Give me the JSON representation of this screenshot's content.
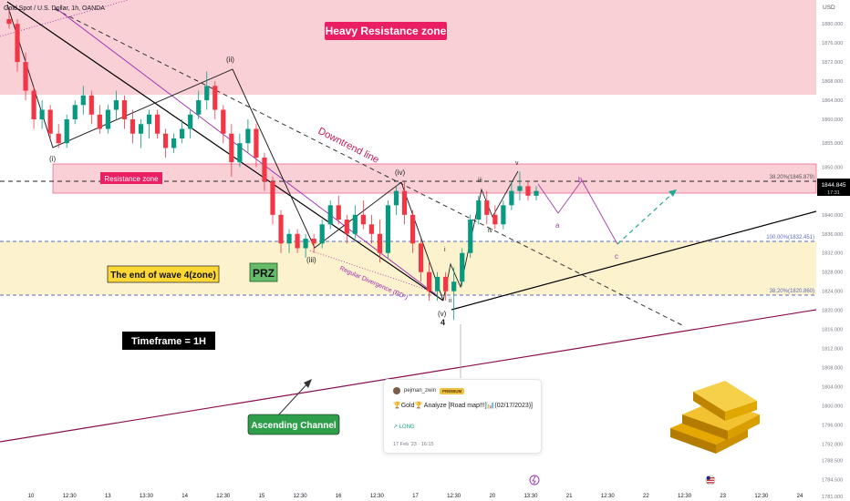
{
  "header": {
    "symbol_text": "Gold Spot / U.S. Dollar, 1h, OANDA",
    "currency": "USD"
  },
  "colors": {
    "up": "#089981",
    "down": "#f23645",
    "resistance_zone_fill": "#f8c8cf",
    "wave4_zone_fill": "#fdf1c9",
    "channel": "#880e4f",
    "divergence": "#9c27b0",
    "forecast_green": "#22ab94",
    "forecast_purple": "#a03da8"
  },
  "annotations": {
    "heavy_resistance": "Heavy Resistance zone",
    "resistance_zone": "Resistance zone",
    "downtrend_line": "Downtrend line",
    "wave4_zone": "The end of wave 4(zone)",
    "prz": "PRZ",
    "timeframe": "Timeframe = 1H",
    "ascending_channel": "Ascending Channel",
    "regular_divergence": "Regular Divergence (RD-)",
    "fib_38_upper": "38.20%(1845.879)",
    "fib_100": "100.00%(1832.451)",
    "fib_38_lower": "38.20%(1820.860)"
  },
  "wave_labels": {
    "w_i": "(i)",
    "w_ii": "(ii)",
    "w_iii": "(iii)",
    "w_iv": "(iv)",
    "w_v": "(v)",
    "w_4": "4",
    "s_i": "i",
    "s_ii": "ii",
    "s_iii": "iii",
    "s_iv": "iv",
    "s_v": "v",
    "s_a": "a",
    "s_b": "b",
    "s_c": "c"
  },
  "price_badge": {
    "price": "1844.845",
    "countdown": "17:31"
  },
  "note_card": {
    "user": "pejman_zwin",
    "badge": "PREMIUM",
    "title": "🏆Gold🏆 Analyze [Road map!!!]📊(02/17/2023)]",
    "direction": "↗ LONG",
    "date": "17 Feb '23 · 16:15"
  },
  "chart_data": {
    "type": "candlestick",
    "y_axis": {
      "min": 1781,
      "max": 1885,
      "ticks": [
        "1880.000",
        "1876.000",
        "1872.000",
        "1868.000",
        "1864.000",
        "1860.000",
        "1855.000",
        "1850.000",
        "1845.000",
        "1840.000",
        "1836.000",
        "1832.000",
        "1828.000",
        "1824.000",
        "1820.000",
        "1816.000",
        "1812.000",
        "1808.000",
        "1804.000",
        "1800.000",
        "1796.000",
        "1792.000",
        "1788.500",
        "1784.500",
        "1781.000"
      ]
    },
    "x_axis": {
      "ticks": [
        "10",
        "12:30",
        "13",
        "13:30",
        "14",
        "12:30",
        "15",
        "12:30",
        "16",
        "12:30",
        "17",
        "12:30",
        "20",
        "13:30",
        "21",
        "12:30",
        "22",
        "12:30",
        "23",
        "12:30",
        "24"
      ]
    },
    "zones": [
      {
        "name": "heavy-resistance",
        "from": 1864.5,
        "to": 1885
      },
      {
        "name": "resistance",
        "from": 1843.5,
        "to": 1849.5
      },
      {
        "name": "wave4",
        "from": 1821,
        "to": 1832.5
      }
    ],
    "candles": [
      {
        "o": 1881,
        "h": 1883,
        "l": 1879,
        "c": 1880
      },
      {
        "o": 1880,
        "h": 1881,
        "l": 1870,
        "c": 1872
      },
      {
        "o": 1872,
        "h": 1874,
        "l": 1864,
        "c": 1866
      },
      {
        "o": 1866,
        "h": 1867,
        "l": 1858,
        "c": 1860
      },
      {
        "o": 1860,
        "h": 1864,
        "l": 1858,
        "c": 1862
      },
      {
        "o": 1862,
        "h": 1863,
        "l": 1856,
        "c": 1857
      },
      {
        "o": 1857,
        "h": 1859,
        "l": 1854,
        "c": 1855
      },
      {
        "o": 1855,
        "h": 1861,
        "l": 1854,
        "c": 1860
      },
      {
        "o": 1860,
        "h": 1864,
        "l": 1859,
        "c": 1863
      },
      {
        "o": 1863,
        "h": 1867,
        "l": 1861,
        "c": 1865
      },
      {
        "o": 1865,
        "h": 1866,
        "l": 1859,
        "c": 1861
      },
      {
        "o": 1861,
        "h": 1863,
        "l": 1857,
        "c": 1858
      },
      {
        "o": 1858,
        "h": 1863,
        "l": 1857,
        "c": 1862
      },
      {
        "o": 1862,
        "h": 1866,
        "l": 1860,
        "c": 1864
      },
      {
        "o": 1864,
        "h": 1865,
        "l": 1858,
        "c": 1860
      },
      {
        "o": 1860,
        "h": 1862,
        "l": 1855,
        "c": 1857
      },
      {
        "o": 1857,
        "h": 1860,
        "l": 1854,
        "c": 1859
      },
      {
        "o": 1859,
        "h": 1862,
        "l": 1856,
        "c": 1861
      },
      {
        "o": 1861,
        "h": 1862,
        "l": 1856,
        "c": 1857
      },
      {
        "o": 1857,
        "h": 1858,
        "l": 1852,
        "c": 1854
      },
      {
        "o": 1854,
        "h": 1857,
        "l": 1853,
        "c": 1856
      },
      {
        "o": 1856,
        "h": 1860,
        "l": 1855,
        "c": 1858
      },
      {
        "o": 1858,
        "h": 1862,
        "l": 1856,
        "c": 1861
      },
      {
        "o": 1861,
        "h": 1866,
        "l": 1860,
        "c": 1864
      },
      {
        "o": 1864,
        "h": 1870,
        "l": 1862,
        "c": 1867
      },
      {
        "o": 1867,
        "h": 1868,
        "l": 1860,
        "c": 1862
      },
      {
        "o": 1862,
        "h": 1863,
        "l": 1855,
        "c": 1857
      },
      {
        "o": 1857,
        "h": 1859,
        "l": 1848,
        "c": 1851
      },
      {
        "o": 1851,
        "h": 1857,
        "l": 1850,
        "c": 1855
      },
      {
        "o": 1855,
        "h": 1860,
        "l": 1853,
        "c": 1858
      },
      {
        "o": 1858,
        "h": 1859,
        "l": 1850,
        "c": 1852
      },
      {
        "o": 1852,
        "h": 1853,
        "l": 1845,
        "c": 1847
      },
      {
        "o": 1847,
        "h": 1848,
        "l": 1838,
        "c": 1840
      },
      {
        "o": 1840,
        "h": 1841,
        "l": 1832,
        "c": 1834
      },
      {
        "o": 1834,
        "h": 1837,
        "l": 1832,
        "c": 1836
      },
      {
        "o": 1836,
        "h": 1837,
        "l": 1832,
        "c": 1833
      },
      {
        "o": 1833,
        "h": 1836,
        "l": 1831,
        "c": 1835
      },
      {
        "o": 1835,
        "h": 1836,
        "l": 1832,
        "c": 1834
      },
      {
        "o": 1834,
        "h": 1839,
        "l": 1833,
        "c": 1838
      },
      {
        "o": 1838,
        "h": 1843,
        "l": 1837,
        "c": 1842
      },
      {
        "o": 1842,
        "h": 1844,
        "l": 1838,
        "c": 1839
      },
      {
        "o": 1839,
        "h": 1840,
        "l": 1834,
        "c": 1836
      },
      {
        "o": 1836,
        "h": 1842,
        "l": 1835,
        "c": 1840
      },
      {
        "o": 1840,
        "h": 1843,
        "l": 1837,
        "c": 1838
      },
      {
        "o": 1838,
        "h": 1840,
        "l": 1834,
        "c": 1836
      },
      {
        "o": 1836,
        "h": 1839,
        "l": 1830,
        "c": 1832
      },
      {
        "o": 1832,
        "h": 1843,
        "l": 1831,
        "c": 1842
      },
      {
        "o": 1842,
        "h": 1846,
        "l": 1840,
        "c": 1845
      },
      {
        "o": 1845,
        "h": 1847,
        "l": 1838,
        "c": 1840
      },
      {
        "o": 1840,
        "h": 1841,
        "l": 1832,
        "c": 1834
      },
      {
        "o": 1834,
        "h": 1835,
        "l": 1826,
        "c": 1828
      },
      {
        "o": 1828,
        "h": 1830,
        "l": 1822,
        "c": 1824
      },
      {
        "o": 1824,
        "h": 1828,
        "l": 1822,
        "c": 1827
      },
      {
        "o": 1827,
        "h": 1828,
        "l": 1822,
        "c": 1824
      },
      {
        "o": 1824,
        "h": 1829,
        "l": 1818,
        "c": 1826
      },
      {
        "o": 1826,
        "h": 1833,
        "l": 1825,
        "c": 1832
      },
      {
        "o": 1832,
        "h": 1840,
        "l": 1831,
        "c": 1839
      },
      {
        "o": 1839,
        "h": 1844,
        "l": 1838,
        "c": 1843
      },
      {
        "o": 1843,
        "h": 1845,
        "l": 1838,
        "c": 1840
      },
      {
        "o": 1840,
        "h": 1842,
        "l": 1837,
        "c": 1838
      },
      {
        "o": 1838,
        "h": 1843,
        "l": 1837,
        "c": 1842
      },
      {
        "o": 1842,
        "h": 1847,
        "l": 1841,
        "c": 1845
      },
      {
        "o": 1845,
        "h": 1849,
        "l": 1843,
        "c": 1846
      },
      {
        "o": 1846,
        "h": 1847,
        "l": 1843,
        "c": 1844
      },
      {
        "o": 1844,
        "h": 1846,
        "l": 1843,
        "c": 1845
      }
    ],
    "reference_lines": [
      {
        "name": "fib-38-upper",
        "y": 1845.879
      },
      {
        "name": "fib-100",
        "y": 1832.451
      },
      {
        "name": "fib-38-lower",
        "y": 1820.86
      }
    ],
    "last_price": 1844.845
  }
}
